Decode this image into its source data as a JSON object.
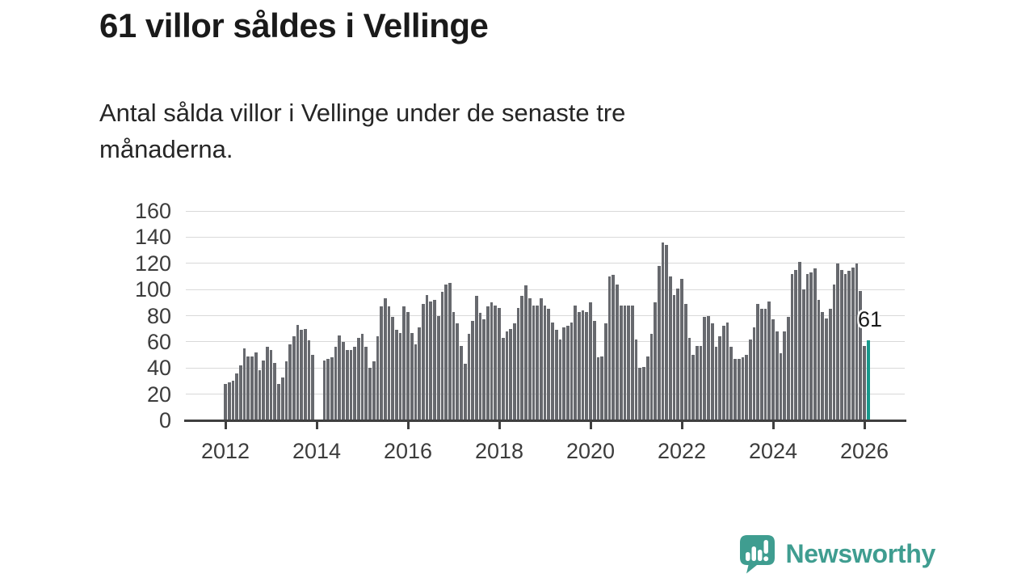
{
  "header": {
    "title": "61 villor såldes i Vellinge",
    "subtitle": "Antal sålda villor i Vellinge under de senaste tre månaderna."
  },
  "chart_data": {
    "type": "bar",
    "title": "61 villor såldes i Vellinge",
    "subtitle": "Antal sålda villor i Vellinge under de senaste tre månaderna.",
    "frequency": "monthly",
    "x_start": "2012-01",
    "x_end": "2026-02",
    "ylim": [
      0,
      160
    ],
    "grid": true,
    "y_ticks": [
      0,
      20,
      40,
      60,
      80,
      100,
      120,
      140,
      160
    ],
    "x_ticks": [
      2012,
      2014,
      2016,
      2018,
      2020,
      2022,
      2024,
      2026
    ],
    "bar_color": "#67696e",
    "highlight_color": "#18998c",
    "annotation": {
      "text": "61",
      "value": 61
    },
    "highlight_last": true,
    "values": [
      28,
      29,
      30,
      36,
      42,
      55,
      49,
      49,
      52,
      38,
      46,
      56,
      54,
      44,
      28,
      33,
      45,
      58,
      64,
      73,
      69,
      70,
      61,
      50,
      0,
      0,
      46,
      47,
      48,
      56,
      65,
      60,
      54,
      54,
      56,
      63,
      66,
      56,
      40,
      45,
      64,
      87,
      93,
      87,
      79,
      69,
      67,
      87,
      83,
      67,
      58,
      71,
      89,
      96,
      91,
      92,
      80,
      98,
      104,
      105,
      83,
      74,
      57,
      43,
      66,
      76,
      95,
      82,
      77,
      87,
      90,
      88,
      86,
      63,
      68,
      70,
      74,
      86,
      95,
      103,
      93,
      88,
      88,
      93,
      88,
      85,
      75,
      69,
      62,
      71,
      72,
      75,
      88,
      83,
      84,
      83,
      90,
      76,
      48,
      49,
      74,
      110,
      111,
      104,
      88,
      88,
      88,
      88,
      62,
      40,
      41,
      49,
      66,
      90,
      118,
      136,
      134,
      110,
      96,
      101,
      108,
      89,
      63,
      50,
      57,
      57,
      79,
      80,
      74,
      56,
      64,
      72,
      75,
      56,
      47,
      47,
      48,
      50,
      62,
      71,
      89,
      85,
      85,
      91,
      77,
      68,
      51,
      68,
      79,
      112,
      115,
      121,
      100,
      112,
      113,
      116,
      92,
      83,
      78,
      85,
      104,
      120,
      115,
      112,
      114,
      117,
      120,
      99,
      57,
      61
    ]
  },
  "footer": {
    "brand": "Newsworthy",
    "brand_color": "#3f9d90",
    "logo_icon": "bar-chart-speech-bubble-icon"
  }
}
